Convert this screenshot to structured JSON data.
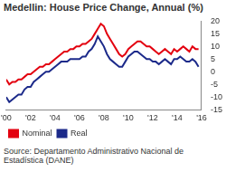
{
  "chart_data": {
    "type": "line",
    "title": "Medellin: House Price Change, Annual (%)",
    "source": "Source: Departamento Administrativo Nacional de Estadística (DANE)",
    "x": [
      2000,
      2000.25,
      2000.5,
      2000.75,
      2001,
      2001.25,
      2001.5,
      2001.75,
      2002,
      2002.25,
      2002.5,
      2002.75,
      2003,
      2003.25,
      2003.5,
      2003.75,
      2004,
      2004.25,
      2004.5,
      2004.75,
      2005,
      2005.25,
      2005.5,
      2005.75,
      2006,
      2006.25,
      2006.5,
      2006.75,
      2007,
      2007.25,
      2007.5,
      2007.75,
      2008,
      2008.25,
      2008.5,
      2008.75,
      2009,
      2009.25,
      2009.5,
      2009.75,
      2010,
      2010.25,
      2010.5,
      2010.75,
      2011,
      2011.25,
      2011.5,
      2011.75,
      2012,
      2012.25,
      2012.5,
      2012.75,
      2013,
      2013.25,
      2013.5,
      2013.75,
      2014,
      2014.25,
      2014.5,
      2014.75,
      2015,
      2015.25,
      2015.5,
      2015.75
    ],
    "series": [
      {
        "name": "Nominal",
        "color": "#e3000f",
        "values": [
          -3,
          -5,
          -4,
          -4,
          -3,
          -3,
          -2,
          -1,
          -1,
          0,
          1,
          2,
          2,
          3,
          3,
          4,
          5,
          6,
          7,
          8,
          8,
          9,
          9,
          10,
          10,
          11,
          11,
          12,
          13,
          15,
          17,
          19,
          18,
          15,
          13,
          11,
          9,
          7,
          6,
          7,
          9,
          10,
          11,
          12,
          12,
          11,
          10,
          10,
          9,
          8,
          7,
          8,
          9,
          8,
          7,
          9,
          8,
          9,
          10,
          9,
          8,
          10,
          9,
          9
        ]
      },
      {
        "name": "Real",
        "color": "#1c2a8a",
        "values": [
          -10,
          -12,
          -11,
          -10,
          -9,
          -9,
          -7,
          -6,
          -6,
          -4,
          -3,
          -2,
          -1,
          0,
          0,
          1,
          2,
          3,
          4,
          4,
          4,
          5,
          5,
          5,
          5,
          6,
          6,
          8,
          9,
          11,
          14,
          12,
          10,
          7,
          5,
          4,
          3,
          2,
          2,
          4,
          6,
          7,
          8,
          8,
          7,
          6,
          5,
          5,
          4,
          4,
          3,
          4,
          5,
          4,
          3,
          5,
          5,
          6,
          5,
          4,
          4,
          5,
          4,
          2
        ]
      }
    ],
    "xlim": [
      2000,
      2016
    ],
    "xticks": [
      {
        "value": 2000,
        "label": "'00"
      },
      {
        "value": 2002,
        "label": "'02"
      },
      {
        "value": 2004,
        "label": "'04"
      },
      {
        "value": 2006,
        "label": "'06"
      },
      {
        "value": 2008,
        "label": "'08"
      },
      {
        "value": 2010,
        "label": "'10"
      },
      {
        "value": 2012,
        "label": "'12"
      },
      {
        "value": 2014,
        "label": "'14"
      },
      {
        "value": 2016,
        "label": "'16"
      }
    ],
    "ylim": [
      -15,
      20
    ],
    "yticks": [
      -15,
      -10,
      -5,
      0,
      5,
      10,
      15,
      20
    ],
    "grid": false,
    "legend": "bottom-left"
  }
}
